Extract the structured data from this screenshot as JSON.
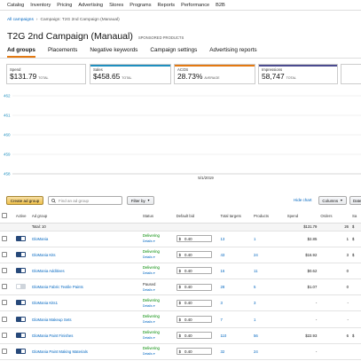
{
  "topnav": [
    "Catalog",
    "Inventory",
    "Pricing",
    "Advertising",
    "Stores",
    "Programs",
    "Reports",
    "Performance",
    "B2B"
  ],
  "breadcrumb": {
    "root": "All campaigns",
    "sep": "›",
    "current": "Campaign: T2G 2nd Campaign (Manaual)"
  },
  "page": {
    "title": "T2G 2nd Campaign (Manaual)",
    "subtitle": "SPONSORED PRODUCTS"
  },
  "tabs": [
    {
      "label": "Ad groups",
      "active": true
    },
    {
      "label": "Placements",
      "active": false
    },
    {
      "label": "Negative keywords",
      "active": false
    },
    {
      "label": "Campaign settings",
      "active": false
    },
    {
      "label": "Advertising reports",
      "active": false
    }
  ],
  "metrics": [
    {
      "label": "Spend",
      "value": "$131.79",
      "unit": "TOTAL",
      "color": "#ffffff"
    },
    {
      "label": "Sales",
      "value": "$458.65",
      "unit": "TOTAL",
      "color": "#1f8fbf"
    },
    {
      "label": "ACOS",
      "value": "28.73%",
      "unit": "AVERAGE",
      "color": "#e47911"
    },
    {
      "label": "Impressions",
      "value": "58,747",
      "unit": "TOTAL",
      "color": "#4b4b8f"
    }
  ],
  "chart_data": {
    "type": "line",
    "y_ticks": [
      "462",
      "461",
      "460",
      "459",
      "458"
    ],
    "x_ticks": [
      "5/1/2019"
    ],
    "ylim": [
      458,
      462
    ],
    "series": []
  },
  "toolbar": {
    "create_label": "Create ad group",
    "search_placeholder": "Find an ad group",
    "filter_label": "Filter by",
    "hide_chart": "Hide chart",
    "columns_label": "Columns",
    "date_label": "Date"
  },
  "table": {
    "headers": {
      "active": "Active",
      "name": "Ad group",
      "status": "Status",
      "bid": "Default bid",
      "targets": "Total targets",
      "products": "Products",
      "spend": "Spend",
      "orders": "Orders",
      "sales": "Sa"
    },
    "total": {
      "label": "Total: 10",
      "spend": "$131.79",
      "orders": "26",
      "sales": "$"
    },
    "rows": [
      {
        "name": "GloMania",
        "status": "Delivering",
        "details": "Details",
        "bid": "0.40",
        "targets": "13",
        "products": "1",
        "spend": "$2.85",
        "orders": "1",
        "sales": "$",
        "on": true
      },
      {
        "name": "GloMania Kits",
        "status": "Delivering",
        "details": "Details",
        "bid": "0.40",
        "targets": "43",
        "products": "24",
        "spend": "$16.92",
        "orders": "3",
        "sales": "$",
        "on": true
      },
      {
        "name": "GloMania Additives",
        "status": "Delivering",
        "details": "Details",
        "bid": "0.40",
        "targets": "16",
        "products": "11",
        "spend": "$0.62",
        "orders": "0",
        "sales": "",
        "on": true
      },
      {
        "name": "GloMania Fabric Textile Paints",
        "status": "Paused",
        "details": "Details",
        "bid": "0.40",
        "targets": "28",
        "products": "5",
        "spend": "$1.07",
        "orders": "0",
        "sales": "",
        "on": false
      },
      {
        "name": "GloMania Kits1",
        "status": "Delivering",
        "details": "Details",
        "bid": "0.40",
        "targets": "3",
        "products": "3",
        "spend": "-",
        "orders": "-",
        "sales": "",
        "on": true
      },
      {
        "name": "GloMania Makeup Sets",
        "status": "Delivering",
        "details": "Details",
        "bid": "0.40",
        "targets": "7",
        "products": "1",
        "spend": "-",
        "orders": "-",
        "sales": "",
        "on": true
      },
      {
        "name": "GloMania Paint Finishes",
        "status": "Delivering",
        "details": "Details",
        "bid": "0.40",
        "targets": "110",
        "products": "56",
        "spend": "$22.93",
        "orders": "6",
        "sales": "$",
        "on": true
      },
      {
        "name": "GloMania Paint Making Materials",
        "status": "Delivering",
        "details": "Details",
        "bid": "0.40",
        "targets": "32",
        "products": "24",
        "spend": "-",
        "orders": "",
        "sales": "",
        "on": true
      }
    ]
  },
  "colors": {
    "link": "#0066c0",
    "delivering": "#008a00",
    "accent": "#e47911",
    "toggle": "#27497a"
  }
}
